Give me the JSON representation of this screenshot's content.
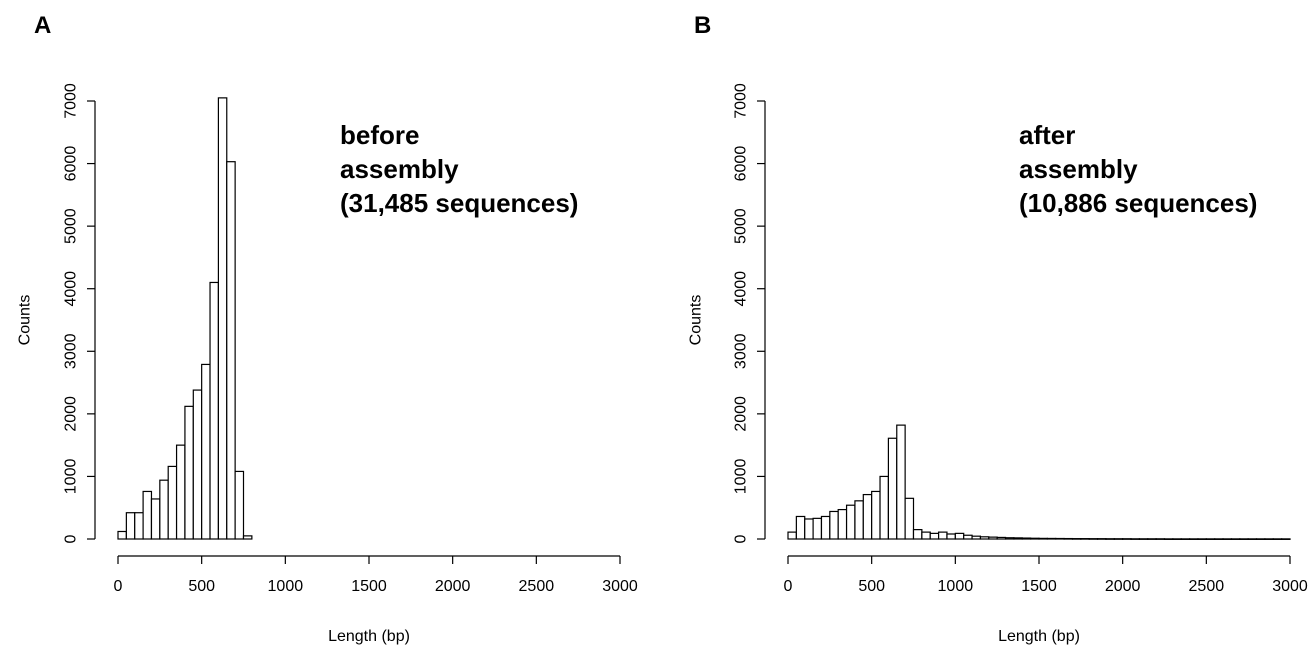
{
  "chart_data": [
    {
      "type": "bar",
      "panel": "A",
      "annotation": [
        "before",
        "assembly",
        "(31,485 sequences)"
      ],
      "xlabel": "Length (bp)",
      "ylabel": "Counts",
      "xlim": [
        0,
        3000
      ],
      "ylim": [
        0,
        7000
      ],
      "xticks": [
        0,
        500,
        1000,
        1500,
        2000,
        2500,
        3000
      ],
      "yticks": [
        0,
        1000,
        2000,
        3000,
        4000,
        5000,
        6000,
        7000
      ],
      "bin_width": 50,
      "bin_start": 0,
      "values": [
        120,
        420,
        420,
        760,
        640,
        940,
        1160,
        1500,
        2120,
        2380,
        2790,
        4100,
        7050,
        6030,
        1080,
        50
      ]
    },
    {
      "type": "bar",
      "panel": "B",
      "annotation": [
        "after",
        "assembly",
        "(10,886 sequences)"
      ],
      "xlabel": "Length (bp)",
      "ylabel": "Counts",
      "xlim": [
        0,
        3000
      ],
      "ylim": [
        0,
        7000
      ],
      "xticks": [
        0,
        500,
        1000,
        1500,
        2000,
        2500,
        3000
      ],
      "yticks": [
        0,
        1000,
        2000,
        3000,
        4000,
        5000,
        6000,
        7000
      ],
      "bin_width": 50,
      "bin_start": 0,
      "values": [
        110,
        360,
        320,
        330,
        360,
        440,
        470,
        540,
        610,
        710,
        760,
        1000,
        1610,
        1820,
        650,
        150,
        110,
        90,
        110,
        80,
        90,
        60,
        45,
        35,
        30,
        25,
        20,
        18,
        15,
        12,
        10,
        9,
        8,
        7,
        6,
        6,
        5,
        5,
        4,
        4,
        4,
        3,
        3,
        3,
        3,
        2,
        2,
        2,
        2,
        2,
        2,
        2,
        2,
        2,
        2,
        2,
        2,
        2,
        2,
        2
      ]
    }
  ]
}
